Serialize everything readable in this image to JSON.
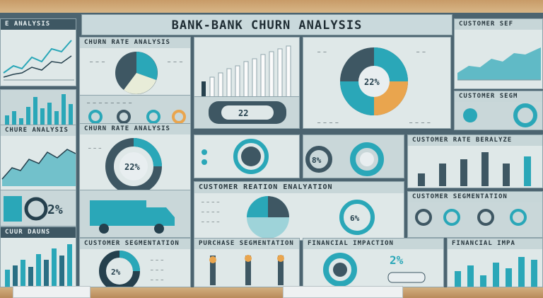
{
  "title": "BANK-BANK CHURN ANALYSIS",
  "headers": {
    "left_top": "E ANALYSIS",
    "churn_rate_analysis": "CHURN RATE ANALYSIS",
    "customer_right_top": "CUSTOMER SEF",
    "customer_right_mid": "CUSTOMER SEGM",
    "left_mid": "CHURE ANALYSIS",
    "churn_rate_analysis_2": "CHURN RATE ANALYSIS",
    "customer_rate_right": "CUSTOMER RATE BERALYZE",
    "customer_relation": "CUSTOMER REATION ENALYATION",
    "customer_segm_right": "CUSTOMER SEGMENTATION",
    "left_bottom": "CUUR DAUNS",
    "customer_segmentation": "CUSTOMER SEGMENTATION",
    "purchase_segmentation": "PURCHASE SEGMENTATION",
    "financial_impact": "FINANCIAL IMPACTION",
    "financial_impact_right": "FINANCIAL IMPA"
  },
  "labels": {
    "pie_center_top": "22%",
    "donut_a": "22%",
    "donut_b": "22%",
    "pct_left": "2%",
    "donut_bottom": "2%",
    "kpi_bottom": "2%",
    "gauge_mid": "8%",
    "gauge_relation": "6%",
    "btn_mid": "22",
    "mini_pct": "%"
  },
  "colors": {
    "teal": "#2aa7b8",
    "navy": "#25404d",
    "orange": "#e9a54e",
    "slate": "#3e5763"
  }
}
